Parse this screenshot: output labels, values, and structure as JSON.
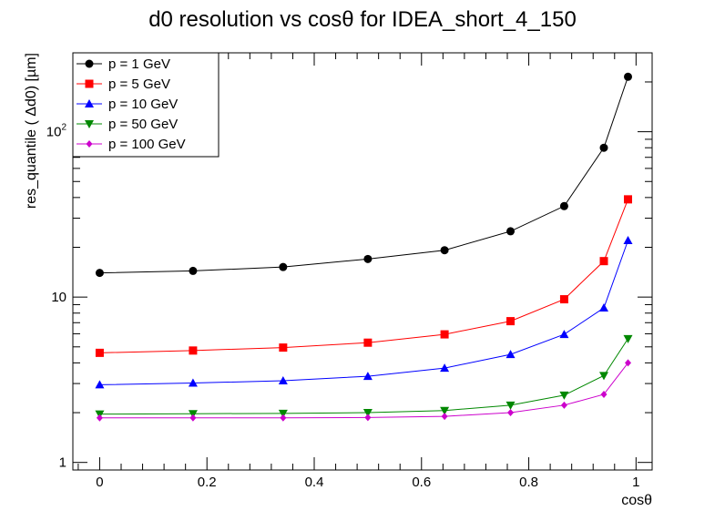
{
  "chart_data": {
    "type": "line",
    "title": "d0 resolution vs cosθ for IDEA_short_4_150",
    "xlabel": "cosθ",
    "ylabel": "res_quantile ( Δd0) [µm]",
    "xlim": [
      -0.05,
      1.03
    ],
    "ylim": [
      0.9,
      300
    ],
    "yscale": "log",
    "grid": false,
    "legend_position": "top-left",
    "x_ticks": [
      "0",
      "0.2",
      "0.4",
      "0.6",
      "0.8",
      "1"
    ],
    "y_ticks": [
      "1",
      "10",
      "10²"
    ],
    "x": [
      0.0,
      0.174,
      0.342,
      0.5,
      0.643,
      0.766,
      0.866,
      0.94,
      0.985
    ],
    "series": [
      {
        "name": "p = 1 GeV",
        "color": "#000000",
        "marker": "circle",
        "values": [
          14.0,
          14.4,
          15.2,
          17.0,
          19.2,
          25.0,
          35.5,
          80.0,
          215.0
        ]
      },
      {
        "name": "p = 5 GeV",
        "color": "#ff0000",
        "marker": "square",
        "values": [
          4.6,
          4.75,
          4.95,
          5.3,
          5.95,
          7.15,
          9.7,
          16.5,
          39.0
        ]
      },
      {
        "name": "p = 10 GeV",
        "color": "#0000ff",
        "marker": "triangle-up",
        "values": [
          2.95,
          3.02,
          3.12,
          3.32,
          3.72,
          4.5,
          5.95,
          8.6,
          22.0
        ]
      },
      {
        "name": "p = 50 GeV",
        "color": "#008800",
        "marker": "triangle-down",
        "values": [
          1.96,
          1.97,
          1.98,
          2.0,
          2.06,
          2.22,
          2.55,
          3.35,
          5.6
        ]
      },
      {
        "name": "p = 100 GeV",
        "color": "#cc00cc",
        "marker": "diamond",
        "values": [
          1.86,
          1.86,
          1.86,
          1.87,
          1.9,
          2.0,
          2.22,
          2.58,
          4.0
        ]
      }
    ]
  }
}
